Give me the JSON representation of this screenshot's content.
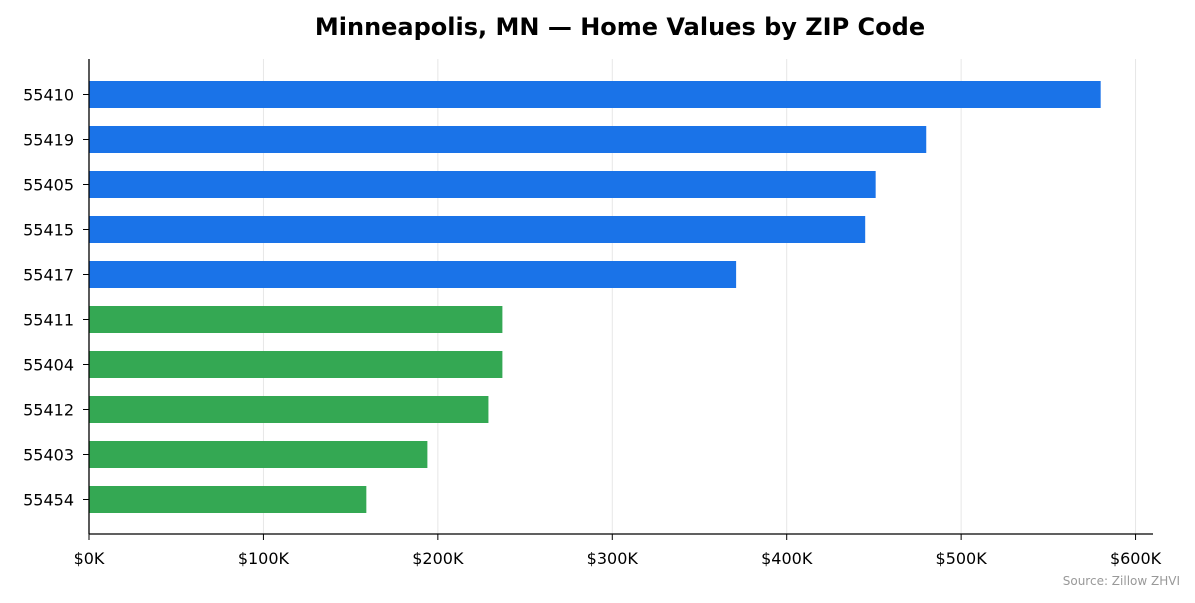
{
  "chart_data": {
    "type": "bar",
    "orientation": "horizontal",
    "title": "Minneapolis, MN — Home Values by ZIP Code",
    "xlabel": "",
    "ylabel": "",
    "categories": [
      "55410",
      "55419",
      "55405",
      "55415",
      "55417",
      "55411",
      "55404",
      "55412",
      "55403",
      "55454"
    ],
    "values": [
      580000,
      480000,
      451000,
      445000,
      371000,
      237000,
      237000,
      229000,
      194000,
      159000
    ],
    "bar_colors": [
      "#1a73e8",
      "#1a73e8",
      "#1a73e8",
      "#1a73e8",
      "#1a73e8",
      "#34a853",
      "#34a853",
      "#34a853",
      "#34a853",
      "#34a853"
    ],
    "xlim": [
      0,
      610000
    ],
    "x_ticks": [
      0,
      100000,
      200000,
      300000,
      400000,
      500000,
      600000
    ],
    "x_tick_labels": [
      "$0K",
      "$100K",
      "$200K",
      "$300K",
      "$400K",
      "$500K",
      "$600K"
    ],
    "grid": "vertical",
    "legend": "none"
  },
  "source_note": "Source: Zillow ZHVI"
}
